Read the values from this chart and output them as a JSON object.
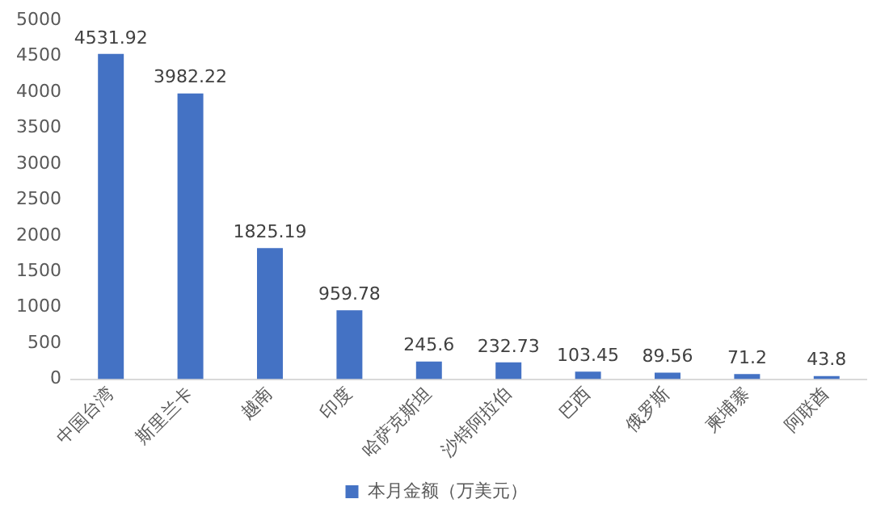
{
  "chart_data": {
    "type": "bar",
    "categories": [
      "中国台湾",
      "斯里兰卡",
      "越南",
      "印度",
      "哈萨克斯坦",
      "沙特阿拉伯",
      "巴西",
      "俄罗斯",
      "柬埔寨",
      "阿联酋"
    ],
    "series": [
      {
        "name": "本月金额（万美元）",
        "color": "#4472c4",
        "values": [
          4531.92,
          3982.22,
          1825.19,
          959.78,
          245.6,
          232.73,
          103.45,
          89.56,
          71.2,
          43.8
        ]
      }
    ],
    "ylim": [
      0,
      5000
    ],
    "yticks": [
      0,
      500,
      1000,
      1500,
      2000,
      2500,
      3000,
      3500,
      4000,
      4500,
      5000
    ],
    "grid": false,
    "legend": "bottom",
    "data_labels": true
  }
}
